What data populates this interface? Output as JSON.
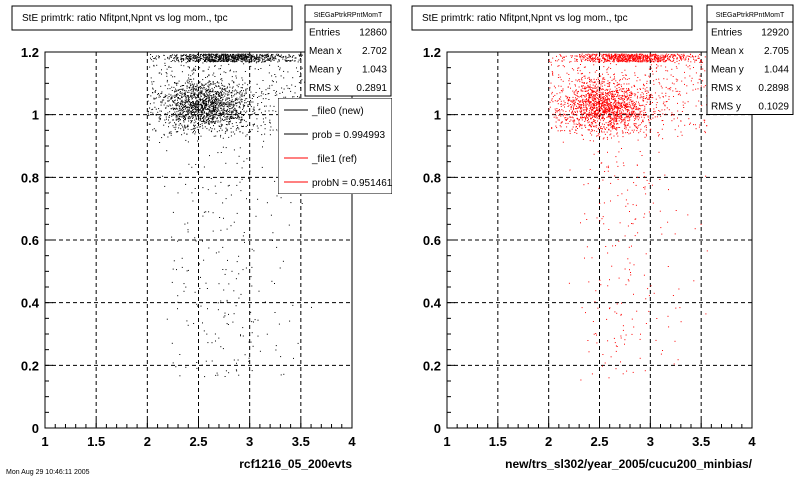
{
  "chart_data": [
    {
      "type": "scatter",
      "title": "StE primtrk: ratio Nfitpnt,Npnt vs log mom., tpc",
      "xlabel": "rcf1216_05_200evts",
      "xlim": [
        1,
        4
      ],
      "ylim": [
        0,
        1.2
      ],
      "x_ticks": [
        "1",
        "1.5",
        "2",
        "2.5",
        "3",
        "3.5",
        "4"
      ],
      "y_ticks": [
        "0",
        "0.2",
        "0.4",
        "0.6",
        "0.8",
        "1",
        "1.2"
      ],
      "grid": true,
      "marker_color": "#000000",
      "stats": {
        "header": "StEGaPtrkRPntMomT",
        "rows": [
          {
            "label": "Entries",
            "value": "12860"
          },
          {
            "label": "Mean x",
            "value": "2.702"
          },
          {
            "label": "Mean y",
            "value": "1.043"
          },
          {
            "label": "RMS x",
            "value": "0.2891"
          }
        ]
      },
      "legend": [
        {
          "label": "_file0 (new)",
          "color": "#000000"
        },
        {
          "label": "prob = 0.994993",
          "color": "#000000"
        },
        {
          "label": "_file1 (ref)",
          "color": "#ff0000"
        },
        {
          "label": "probN = 0.951461",
          "color": "#ff0000"
        }
      ],
      "legend_position": "top-right"
    },
    {
      "type": "scatter",
      "title": "StE primtrk: ratio Nfitpnt,Npnt vs log mom., tpc",
      "xlabel": "new/trs_sl302/year_2005/cucu200_minbias/",
      "xlim": [
        1,
        4
      ],
      "ylim": [
        0,
        1.2
      ],
      "x_ticks": [
        "1",
        "1.5",
        "2",
        "2.5",
        "3",
        "3.5",
        "4"
      ],
      "y_ticks": [
        "0",
        "0.2",
        "0.4",
        "0.6",
        "0.8",
        "1",
        "1.2"
      ],
      "grid": true,
      "marker_color": "#ff0000",
      "stats": {
        "header": "StEGaPtrkRPntMomT",
        "rows": [
          {
            "label": "Entries",
            "value": "12920"
          },
          {
            "label": "Mean x",
            "value": "2.705"
          },
          {
            "label": "Mean y",
            "value": "1.044"
          },
          {
            "label": "RMS x",
            "value": "0.2898"
          },
          {
            "label": "RMS y",
            "value": "0.1029"
          }
        ]
      }
    }
  ],
  "footer": "Mon Aug 29 10:46:11 2005"
}
